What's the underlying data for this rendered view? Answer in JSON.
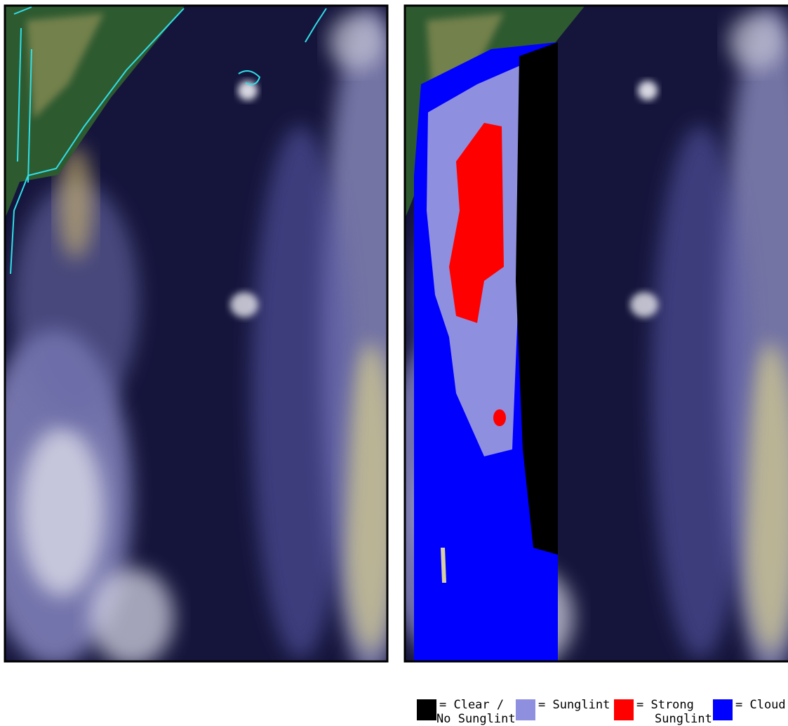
{
  "legend": [
    {
      "color": "#000000",
      "lines": [
        "= Clear /",
        "No Sunglint"
      ]
    },
    {
      "color": "#8f8fdf",
      "lines": [
        "= Sunglint"
      ]
    },
    {
      "color": "#ff0000",
      "lines": [
        "= Strong",
        "Sunglint"
      ]
    },
    {
      "color": "#0000ff",
      "lines": [
        "= Cloud"
      ]
    }
  ]
}
